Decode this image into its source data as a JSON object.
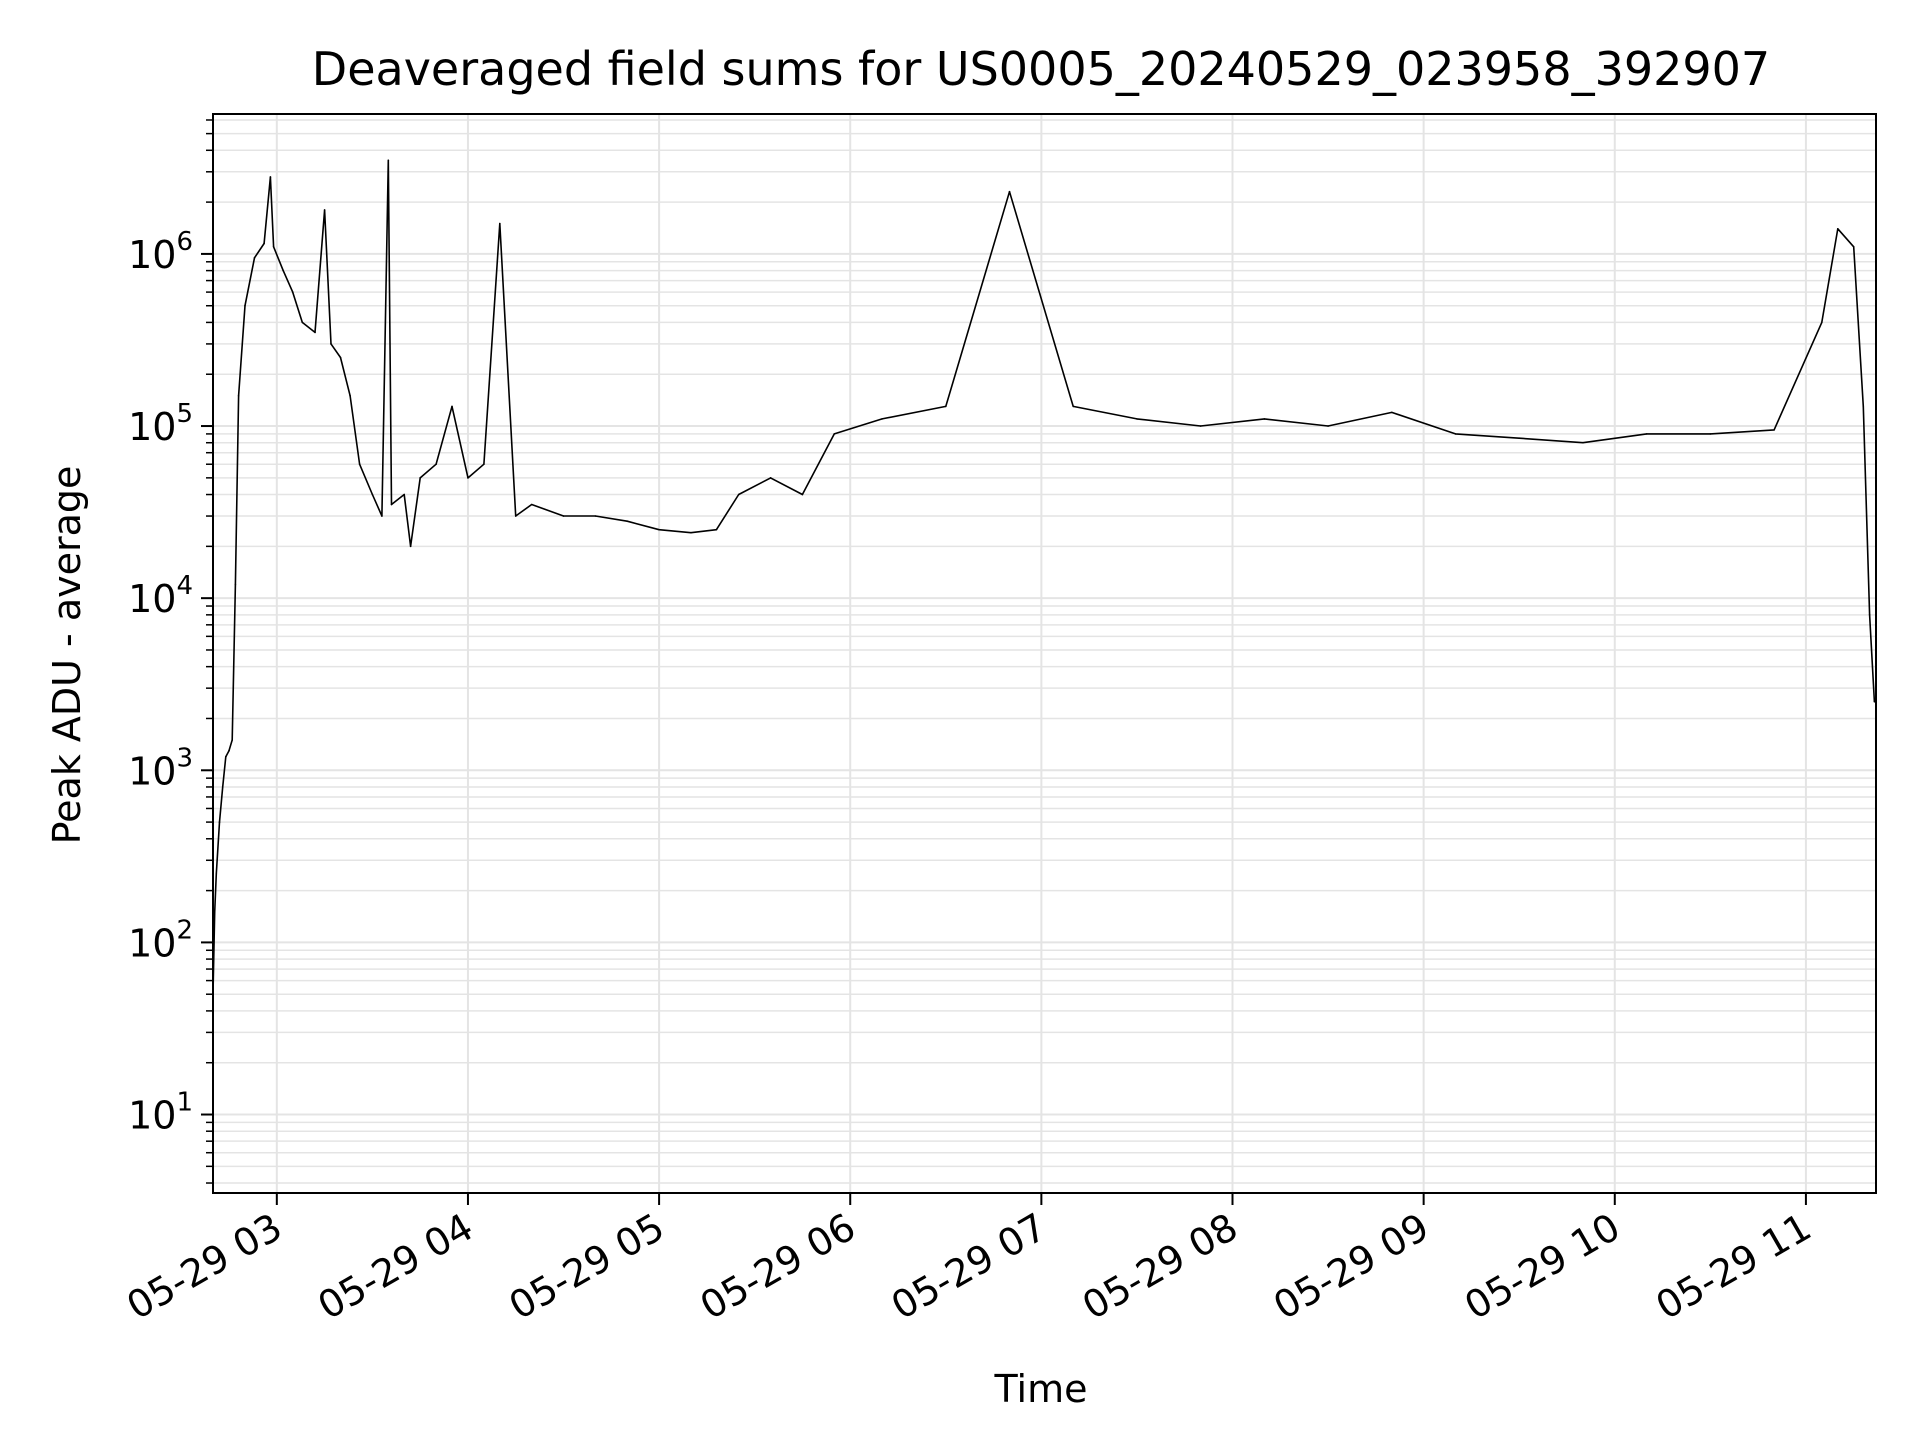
{
  "chart_data": {
    "type": "line",
    "title": "Deaveraged field sums for US0005_20240529_023958_392907",
    "xlabel": "Time",
    "ylabel": "Peak ADU - average",
    "yscale": "log",
    "ylim": [
      3.5,
      6500000
    ],
    "xlim": [
      "2024-05-29 02:39:58",
      "2024-05-29 11:22:00"
    ],
    "grid": true,
    "x_ticks": [
      "2024-05-29 03:00",
      "2024-05-29 04:00",
      "2024-05-29 05:00",
      "2024-05-29 06:00",
      "2024-05-29 07:00",
      "2024-05-29 08:00",
      "2024-05-29 09:00",
      "2024-05-29 10:00",
      "2024-05-29 11:00"
    ],
    "x_tick_labels": [
      "05-29 03",
      "05-29 04",
      "05-29 05",
      "05-29 06",
      "05-29 07",
      "05-29 08",
      "05-29 09",
      "05-29 10",
      "05-29 11"
    ],
    "y_ticks": [
      {
        "value": 10,
        "base": "10",
        "exp": "1"
      },
      {
        "value": 100,
        "base": "10",
        "exp": "2"
      },
      {
        "value": 1000,
        "base": "10",
        "exp": "3"
      },
      {
        "value": 10000,
        "base": "10",
        "exp": "4"
      },
      {
        "value": 100000,
        "base": "10",
        "exp": "5"
      },
      {
        "value": 1000000,
        "base": "10",
        "exp": "6"
      }
    ],
    "line_color": "#000000",
    "series": [
      {
        "points": [
          [
            "2024-05-29 02:39:58",
            50
          ],
          [
            "2024-05-29 02:40:30",
            150
          ],
          [
            "2024-05-29 02:41:00",
            250
          ],
          [
            "2024-05-29 02:42:00",
            500
          ],
          [
            "2024-05-29 02:43:00",
            800
          ],
          [
            "2024-05-29 02:44:00",
            1200
          ],
          [
            "2024-05-29 02:45:00",
            1300
          ],
          [
            "2024-05-29 02:46:00",
            1500
          ],
          [
            "2024-05-29 02:47:00",
            12000
          ],
          [
            "2024-05-29 02:48:00",
            150000
          ],
          [
            "2024-05-29 02:50:00",
            500000
          ],
          [
            "2024-05-29 02:53:00",
            950000
          ],
          [
            "2024-05-29 02:56:00",
            1150000
          ],
          [
            "2024-05-29 02:58:00",
            2800000
          ],
          [
            "2024-05-29 02:59:00",
            1100000
          ],
          [
            "2024-05-29 03:02:00",
            800000
          ],
          [
            "2024-05-29 03:05:00",
            600000
          ],
          [
            "2024-05-29 03:08:00",
            400000
          ],
          [
            "2024-05-29 03:12:00",
            350000
          ],
          [
            "2024-05-29 03:15:00",
            1800000
          ],
          [
            "2024-05-29 03:17:00",
            300000
          ],
          [
            "2024-05-29 03:20:00",
            250000
          ],
          [
            "2024-05-29 03:23:00",
            150000
          ],
          [
            "2024-05-29 03:26:00",
            60000
          ],
          [
            "2024-05-29 03:30:00",
            40000
          ],
          [
            "2024-05-29 03:33:00",
            30000
          ],
          [
            "2024-05-29 03:35:00",
            3500000
          ],
          [
            "2024-05-29 03:36:00",
            35000
          ],
          [
            "2024-05-29 03:40:00",
            40000
          ],
          [
            "2024-05-29 03:42:00",
            20000
          ],
          [
            "2024-05-29 03:45:00",
            50000
          ],
          [
            "2024-05-29 03:50:00",
            60000
          ],
          [
            "2024-05-29 03:55:00",
            130000
          ],
          [
            "2024-05-29 04:00:00",
            50000
          ],
          [
            "2024-05-29 04:05:00",
            60000
          ],
          [
            "2024-05-29 04:10:00",
            1500000
          ],
          [
            "2024-05-29 04:15:00",
            30000
          ],
          [
            "2024-05-29 04:20:00",
            35000
          ],
          [
            "2024-05-29 04:30:00",
            30000
          ],
          [
            "2024-05-29 04:40:00",
            30000
          ],
          [
            "2024-05-29 04:50:00",
            28000
          ],
          [
            "2024-05-29 05:00:00",
            25000
          ],
          [
            "2024-05-29 05:10:00",
            24000
          ],
          [
            "2024-05-29 05:18:00",
            25000
          ],
          [
            "2024-05-29 05:25:00",
            40000
          ],
          [
            "2024-05-29 05:35:00",
            50000
          ],
          [
            "2024-05-29 05:45:00",
            40000
          ],
          [
            "2024-05-29 05:55:00",
            90000
          ],
          [
            "2024-05-29 06:10:00",
            110000
          ],
          [
            "2024-05-29 06:30:00",
            130000
          ],
          [
            "2024-05-29 06:50:00",
            2300000
          ],
          [
            "2024-05-29 07:10:00",
            130000
          ],
          [
            "2024-05-29 07:30:00",
            110000
          ],
          [
            "2024-05-29 07:50:00",
            100000
          ],
          [
            "2024-05-29 08:10:00",
            110000
          ],
          [
            "2024-05-29 08:30:00",
            100000
          ],
          [
            "2024-05-29 08:50:00",
            120000
          ],
          [
            "2024-05-29 09:10:00",
            90000
          ],
          [
            "2024-05-29 09:30:00",
            85000
          ],
          [
            "2024-05-29 09:50:00",
            80000
          ],
          [
            "2024-05-29 10:10:00",
            90000
          ],
          [
            "2024-05-29 10:30:00",
            90000
          ],
          [
            "2024-05-29 10:50:00",
            95000
          ],
          [
            "2024-05-29 11:05:00",
            400000
          ],
          [
            "2024-05-29 11:10:00",
            1400000
          ],
          [
            "2024-05-29 11:15:00",
            1100000
          ],
          [
            "2024-05-29 11:18:00",
            130000
          ],
          [
            "2024-05-29 11:20:00",
            8000
          ],
          [
            "2024-05-29 11:21:30",
            2500
          ]
        ]
      }
    ]
  }
}
